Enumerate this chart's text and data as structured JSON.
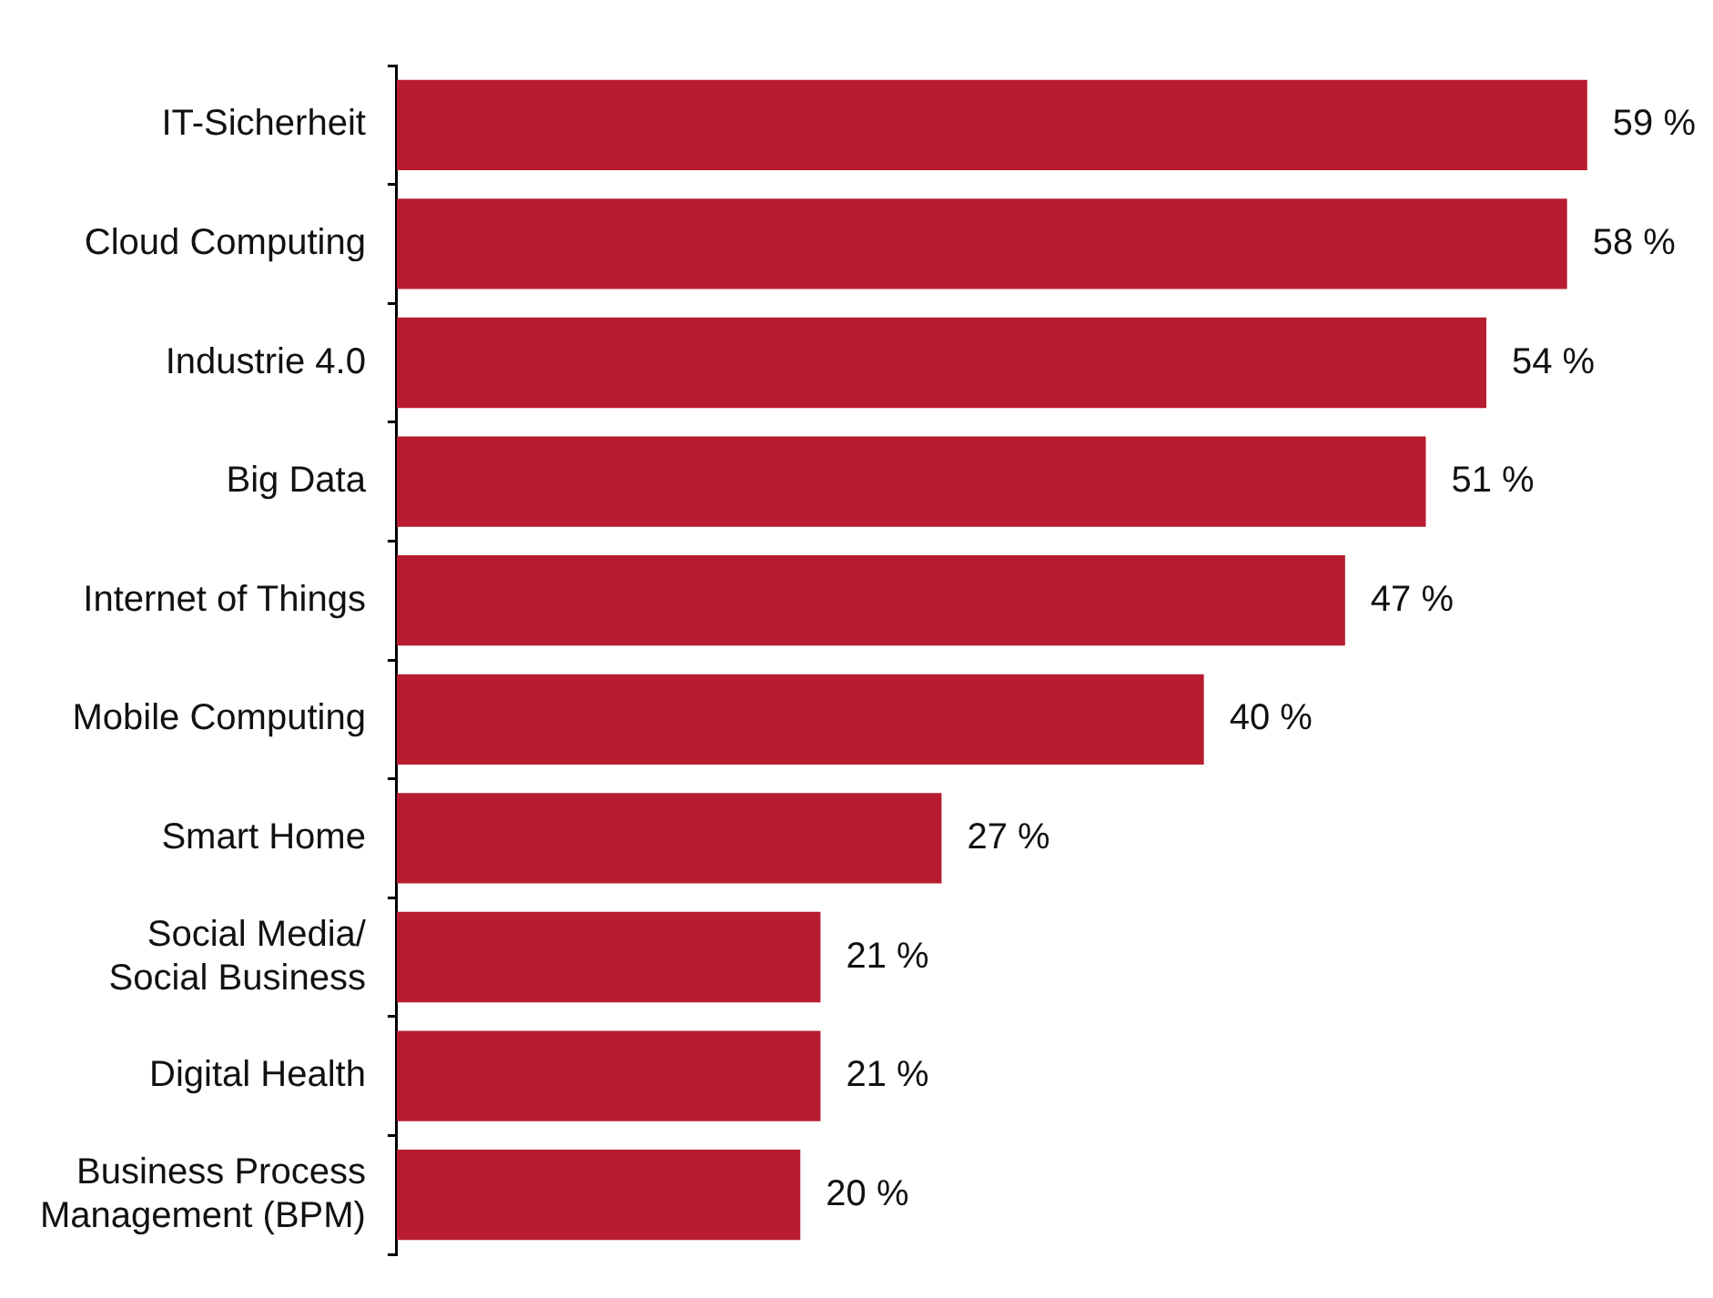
{
  "chart_data": {
    "type": "bar",
    "orientation": "horizontal",
    "categories": [
      "IT-Sicherheit",
      "Cloud Computing",
      "Industrie 4.0",
      "Big Data",
      "Internet of Things",
      "Mobile Computing",
      "Smart Home",
      "Social Media/\nSocial Business",
      "Digital Health",
      "Business Process\nManagement (BPM)"
    ],
    "values": [
      59,
      58,
      54,
      51,
      47,
      40,
      27,
      21,
      21,
      20
    ],
    "value_labels": [
      "59 %",
      "58 %",
      "54 %",
      "51 %",
      "47 %",
      "40 %",
      "27 %",
      "21 %",
      "21 %",
      "20 %"
    ],
    "color": "#b81c30"
  }
}
